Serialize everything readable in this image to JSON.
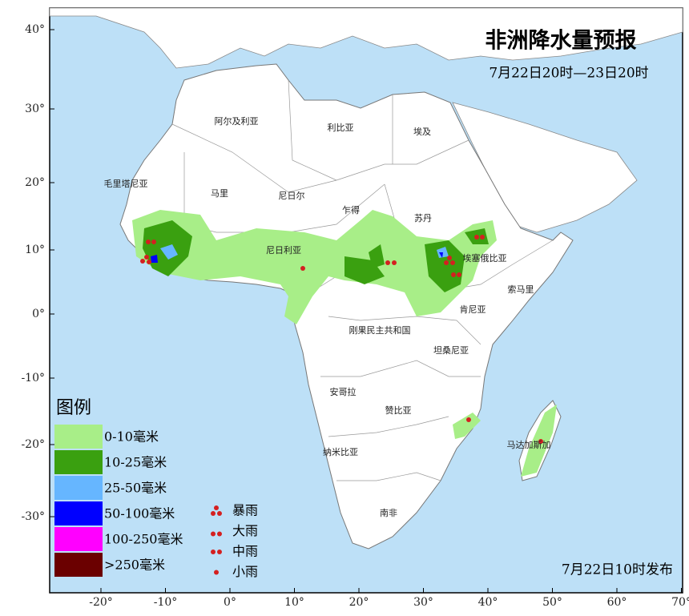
{
  "map": {
    "title": "非洲降水量预报",
    "subtitle": "7月22日20时—23日20时",
    "lat_labels": [
      "40°",
      "30°",
      "20°",
      "10°",
      "0°",
      "-10°",
      "-20°",
      "-30°"
    ],
    "lon_labels": [
      "-20°",
      "-10°",
      "0°",
      "10°",
      "20°",
      "30°",
      "40°",
      "50°",
      "60°",
      "70°"
    ],
    "countries": [
      "阿尔及利亚",
      "利比亚",
      "埃及",
      "毛里塔尼亚",
      "马里",
      "尼日尔",
      "乍得",
      "苏丹",
      "尼日利亚",
      "埃塞俄比亚",
      "索马里",
      "肯尼亚",
      "刚果民主共和国",
      "坦桑尼亚",
      "安哥拉",
      "赞比亚",
      "马达加斯加",
      "纳米比亚",
      "南非"
    ],
    "issued": "7月22日10时发布"
  },
  "legend": {
    "title": "图例",
    "precip": [
      {
        "label": "0-10毫米",
        "color": "#a8ee88"
      },
      {
        "label": "10-25毫米",
        "color": "#3aa010"
      },
      {
        "label": "25-50毫米",
        "color": "#66b6ff"
      },
      {
        "label": "50-100毫米",
        "color": "#0000ff"
      },
      {
        "label": "100-250毫米",
        "color": "#ff00ff"
      },
      {
        "label": ">250毫米",
        "color": "#6b0000"
      }
    ],
    "rain_symbols": [
      "暴雨",
      "大雨",
      "中雨",
      "小雨"
    ]
  }
}
